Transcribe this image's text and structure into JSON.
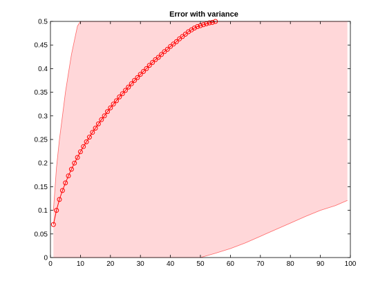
{
  "chart_data": {
    "type": "line",
    "title": "Error with variance",
    "xlabel": "",
    "ylabel": "",
    "xlim": [
      0,
      100
    ],
    "ylim": [
      0,
      0.5
    ],
    "xticks": [
      0,
      10,
      20,
      30,
      40,
      50,
      60,
      70,
      80,
      90,
      100
    ],
    "yticks": [
      0,
      0.05,
      0.1,
      0.15,
      0.2,
      0.25,
      0.3,
      0.35,
      0.4,
      0.45,
      0.5
    ],
    "xtick_labels": [
      "0",
      "10",
      "20",
      "30",
      "40",
      "50",
      "60",
      "70",
      "80",
      "90",
      "100"
    ],
    "ytick_labels": [
      "0",
      "0.05",
      "0.1",
      "0.15",
      "0.2",
      "0.25",
      "0.3",
      "0.35",
      "0.4",
      "0.45",
      "0.5"
    ],
    "grid": false,
    "series": [
      {
        "color": "#ff0000",
        "marker": "circle",
        "x": [
          1,
          2,
          3,
          4,
          5,
          6,
          7,
          8,
          9,
          10,
          11,
          12,
          13,
          14,
          15,
          16,
          17,
          18,
          19,
          20,
          21,
          22,
          23,
          24,
          25,
          26,
          27,
          28,
          29,
          30,
          31,
          32,
          33,
          34,
          35,
          36,
          37,
          38,
          39,
          40,
          41,
          42,
          43,
          44,
          45,
          46,
          47,
          48,
          49,
          50,
          51,
          52,
          53,
          54,
          55
        ],
        "y": [
          0.07,
          0.1,
          0.123,
          0.142,
          0.158,
          0.173,
          0.187,
          0.2,
          0.212,
          0.224,
          0.235,
          0.245,
          0.255,
          0.265,
          0.274,
          0.283,
          0.292,
          0.3,
          0.309,
          0.317,
          0.325,
          0.332,
          0.34,
          0.347,
          0.354,
          0.361,
          0.368,
          0.375,
          0.381,
          0.388,
          0.394,
          0.4,
          0.407,
          0.413,
          0.419,
          0.424,
          0.43,
          0.436,
          0.441,
          0.447,
          0.452,
          0.457,
          0.463,
          0.468,
          0.473,
          0.478,
          0.482,
          0.486,
          0.489,
          0.491,
          0.493,
          0.495,
          0.497,
          0.498,
          0.5
        ]
      }
    ],
    "band": {
      "color": "#ffd7d9",
      "edge_color": "#ff6666",
      "x": [
        1,
        2,
        3,
        4,
        5,
        6,
        7,
        8,
        9,
        10,
        15,
        20,
        25,
        30,
        35,
        40,
        45,
        50,
        55,
        60,
        65,
        70,
        75,
        80,
        85,
        90,
        95,
        99
      ],
      "upper": [
        0.1,
        0.19,
        0.25,
        0.3,
        0.35,
        0.39,
        0.43,
        0.46,
        0.49,
        0.5,
        0.5,
        0.5,
        0.5,
        0.5,
        0.5,
        0.5,
        0.5,
        0.5,
        0.5,
        0.5,
        0.5,
        0.5,
        0.5,
        0.5,
        0.5,
        0.5,
        0.5,
        0.5
      ],
      "lower": [
        0,
        0,
        0,
        0,
        0,
        0,
        0,
        0,
        0,
        0,
        0,
        0,
        0,
        0,
        0,
        0,
        0,
        0,
        0.009,
        0.019,
        0.031,
        0.045,
        0.059,
        0.073,
        0.087,
        0.1,
        0.11,
        0.121
      ]
    }
  }
}
